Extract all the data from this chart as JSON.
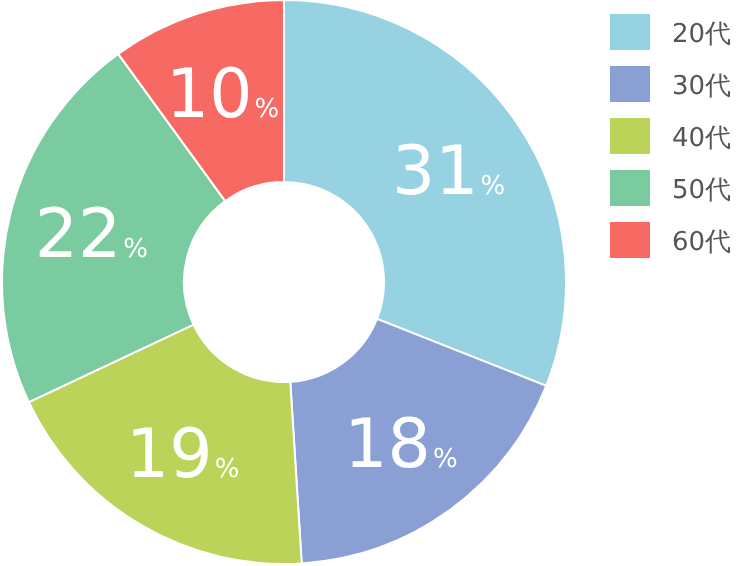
{
  "chart_data": {
    "type": "donut",
    "categories": [
      "20代",
      "30代",
      "40代",
      "50代",
      "60代"
    ],
    "values": [
      31,
      18,
      19,
      22,
      10
    ],
    "colors": [
      "#96d2e1",
      "#8a9fd4",
      "#bcd35a",
      "#7acca0",
      "#f76a63"
    ],
    "value_labels": [
      "31%",
      "18%",
      "19%",
      "22%",
      "10%"
    ],
    "legend": "right"
  }
}
